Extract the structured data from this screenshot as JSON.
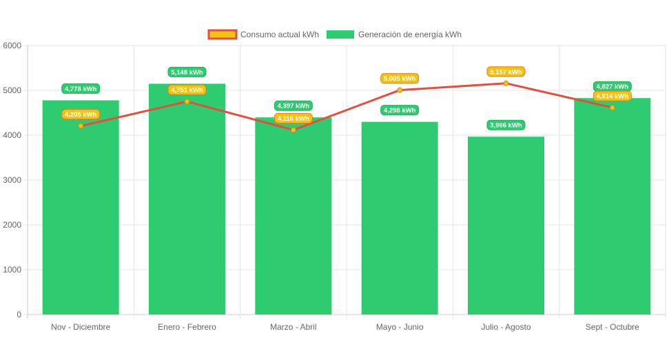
{
  "colors": {
    "generation": "#2ecc71",
    "consumption_line": "#e74c3c",
    "consumption_point": "#f1c40f",
    "consumption_label_bg": "#f1c40f",
    "consumption_label_border": "#e67e22",
    "grid": "#e5e5e5",
    "text": "#666666"
  },
  "legend": {
    "consumption": "Consumo actual kWh",
    "generation": "Generación de energía kWh"
  },
  "chart_data": {
    "type": "bar",
    "categories": [
      "Nov - Diciembre",
      "Enero - Febrero",
      "Marzo - Abril",
      "Mayo - Junio",
      "Julio - Agosto",
      "Sept - Octubre"
    ],
    "series": [
      {
        "name": "Consumo actual kWh",
        "type": "line",
        "values": [
          4205,
          4751,
          4116,
          5005,
          5157,
          4614
        ],
        "labels": [
          "4,205 kWh",
          "4,751 kWh",
          "4,116 kWh",
          "5,005 kWh",
          "5,157 kWh",
          "4,614 kWh"
        ]
      },
      {
        "name": "Generación de energía kWh",
        "type": "bar",
        "values": [
          4778,
          5148,
          4397,
          4298,
          3966,
          4827
        ],
        "labels": [
          "4,778 kWh",
          "5,148 kWh",
          "4,397 kWh",
          "4,298 kWh",
          "3,966 kWh",
          "4,827 kWh"
        ]
      }
    ],
    "ylim": [
      0,
      6000
    ],
    "yticks": [
      "0",
      "1000",
      "2000",
      "3000",
      "4000",
      "5000",
      "6000"
    ],
    "grid": true,
    "legend_position": "top"
  }
}
